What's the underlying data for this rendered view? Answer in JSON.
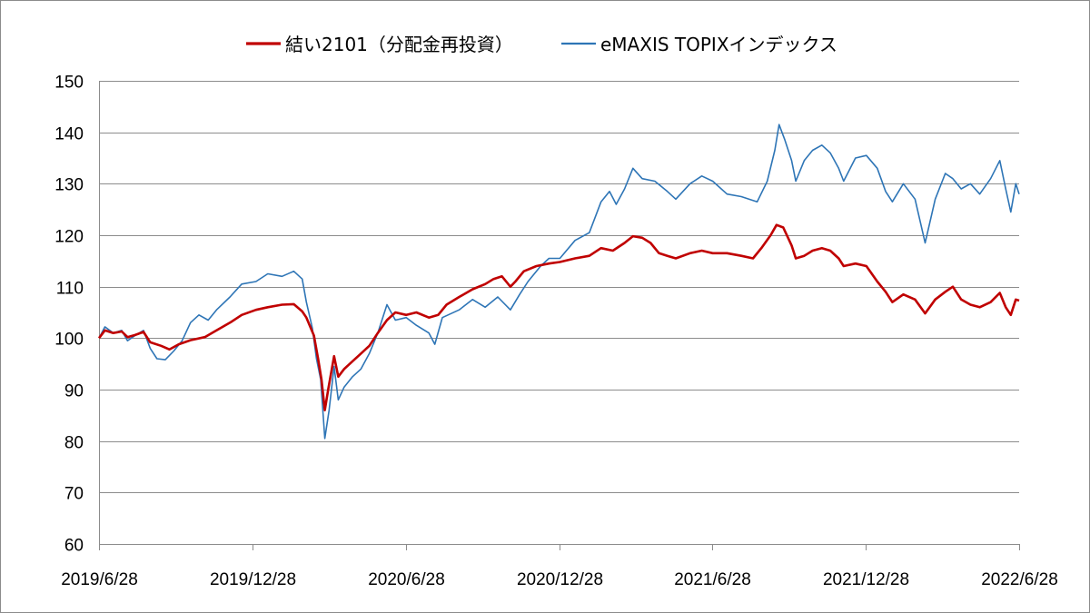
{
  "chart_data": {
    "type": "line",
    "title": "",
    "xlabel": "",
    "ylabel": "",
    "ylim": [
      60,
      150
    ],
    "y_ticks": [
      60,
      70,
      80,
      90,
      100,
      110,
      120,
      130,
      140,
      150
    ],
    "x_tick_labels": [
      "2019/6/28",
      "2019/12/28",
      "2020/6/28",
      "2020/12/28",
      "2021/6/28",
      "2021/12/28",
      "2022/6/28"
    ],
    "x_range": [
      "2019-06-28",
      "2022-06-28"
    ],
    "grid": "horizontal",
    "legend_position": "top",
    "series": [
      {
        "name": "結い2101（分配金再投資）",
        "color": "#c00000",
        "points": [
          [
            "2019-06-28",
            100.0
          ],
          [
            "2019-07-05",
            101.5
          ],
          [
            "2019-07-15",
            101.0
          ],
          [
            "2019-07-25",
            101.3
          ],
          [
            "2019-08-01",
            100.2
          ],
          [
            "2019-08-10",
            100.6
          ],
          [
            "2019-08-20",
            101.2
          ],
          [
            "2019-08-28",
            99.2
          ],
          [
            "2019-09-10",
            98.5
          ],
          [
            "2019-09-20",
            97.8
          ],
          [
            "2019-10-01",
            98.8
          ],
          [
            "2019-10-15",
            99.6
          ],
          [
            "2019-11-01",
            100.2
          ],
          [
            "2019-11-15",
            101.5
          ],
          [
            "2019-12-01",
            103.0
          ],
          [
            "2019-12-15",
            104.5
          ],
          [
            "2020-01-01",
            105.5
          ],
          [
            "2020-01-15",
            106.0
          ],
          [
            "2020-02-01",
            106.5
          ],
          [
            "2020-02-15",
            106.6
          ],
          [
            "2020-02-25",
            105.2
          ],
          [
            "2020-03-01",
            104.0
          ],
          [
            "2020-03-10",
            100.5
          ],
          [
            "2020-03-15",
            96.0
          ],
          [
            "2020-03-19",
            92.0
          ],
          [
            "2020-03-23",
            86.0
          ],
          [
            "2020-03-27",
            90.0
          ],
          [
            "2020-04-03",
            96.5
          ],
          [
            "2020-04-08",
            92.5
          ],
          [
            "2020-04-15",
            94.0
          ],
          [
            "2020-04-25",
            95.5
          ],
          [
            "2020-05-05",
            97.0
          ],
          [
            "2020-05-15",
            98.5
          ],
          [
            "2020-05-25",
            101.0
          ],
          [
            "2020-06-05",
            103.5
          ],
          [
            "2020-06-15",
            105.0
          ],
          [
            "2020-06-28",
            104.5
          ],
          [
            "2020-07-10",
            105.0
          ],
          [
            "2020-07-25",
            104.0
          ],
          [
            "2020-08-05",
            104.5
          ],
          [
            "2020-08-15",
            106.5
          ],
          [
            "2020-08-30",
            108.0
          ],
          [
            "2020-09-15",
            109.5
          ],
          [
            "2020-09-30",
            110.5
          ],
          [
            "2020-10-10",
            111.5
          ],
          [
            "2020-10-20",
            112.0
          ],
          [
            "2020-10-30",
            110.0
          ],
          [
            "2020-11-05",
            111.0
          ],
          [
            "2020-11-15",
            113.0
          ],
          [
            "2020-11-30",
            114.0
          ],
          [
            "2020-12-15",
            114.5
          ],
          [
            "2020-12-28",
            114.8
          ],
          [
            "2021-01-15",
            115.5
          ],
          [
            "2021-02-01",
            116.0
          ],
          [
            "2021-02-15",
            117.5
          ],
          [
            "2021-03-01",
            117.0
          ],
          [
            "2021-03-15",
            118.5
          ],
          [
            "2021-03-25",
            119.8
          ],
          [
            "2021-04-05",
            119.5
          ],
          [
            "2021-04-15",
            118.5
          ],
          [
            "2021-04-25",
            116.5
          ],
          [
            "2021-05-05",
            116.0
          ],
          [
            "2021-05-15",
            115.5
          ],
          [
            "2021-06-01",
            116.5
          ],
          [
            "2021-06-15",
            117.0
          ],
          [
            "2021-06-28",
            116.5
          ],
          [
            "2021-07-15",
            116.5
          ],
          [
            "2021-08-01",
            116.0
          ],
          [
            "2021-08-15",
            115.5
          ],
          [
            "2021-08-25",
            117.5
          ],
          [
            "2021-09-05",
            120.0
          ],
          [
            "2021-09-12",
            122.0
          ],
          [
            "2021-09-20",
            121.5
          ],
          [
            "2021-09-30",
            118.0
          ],
          [
            "2021-10-05",
            115.5
          ],
          [
            "2021-10-15",
            116.0
          ],
          [
            "2021-10-25",
            117.0
          ],
          [
            "2021-11-05",
            117.5
          ],
          [
            "2021-11-15",
            117.0
          ],
          [
            "2021-11-25",
            115.5
          ],
          [
            "2021-12-01",
            114.0
          ],
          [
            "2021-12-15",
            114.5
          ],
          [
            "2021-12-28",
            114.0
          ],
          [
            "2022-01-10",
            111.0
          ],
          [
            "2022-01-20",
            109.0
          ],
          [
            "2022-01-28",
            107.0
          ],
          [
            "2022-02-10",
            108.5
          ],
          [
            "2022-02-24",
            107.5
          ],
          [
            "2022-03-08",
            104.8
          ],
          [
            "2022-03-20",
            107.5
          ],
          [
            "2022-04-01",
            109.0
          ],
          [
            "2022-04-10",
            110.0
          ],
          [
            "2022-04-20",
            107.5
          ],
          [
            "2022-05-01",
            106.5
          ],
          [
            "2022-05-12",
            106.0
          ],
          [
            "2022-05-25",
            107.0
          ],
          [
            "2022-06-05",
            108.8
          ],
          [
            "2022-06-12",
            106.0
          ],
          [
            "2022-06-18",
            104.5
          ],
          [
            "2022-06-24",
            107.5
          ],
          [
            "2022-06-28",
            107.3
          ]
        ]
      },
      {
        "name": "eMAXIS TOPIXインデックス",
        "color": "#2e75b6",
        "points": [
          [
            "2019-06-28",
            100.0
          ],
          [
            "2019-07-05",
            102.2
          ],
          [
            "2019-07-15",
            101.0
          ],
          [
            "2019-07-25",
            101.5
          ],
          [
            "2019-08-01",
            99.5
          ],
          [
            "2019-08-10",
            100.5
          ],
          [
            "2019-08-20",
            101.5
          ],
          [
            "2019-08-28",
            98.0
          ],
          [
            "2019-09-05",
            96.0
          ],
          [
            "2019-09-15",
            95.8
          ],
          [
            "2019-09-25",
            97.5
          ],
          [
            "2019-10-05",
            99.5
          ],
          [
            "2019-10-15",
            103.0
          ],
          [
            "2019-10-25",
            104.5
          ],
          [
            "2019-11-05",
            103.5
          ],
          [
            "2019-11-15",
            105.5
          ],
          [
            "2019-12-01",
            108.0
          ],
          [
            "2019-12-15",
            110.5
          ],
          [
            "2020-01-01",
            111.0
          ],
          [
            "2020-01-15",
            112.5
          ],
          [
            "2020-02-01",
            112.0
          ],
          [
            "2020-02-15",
            113.0
          ],
          [
            "2020-02-25",
            111.5
          ],
          [
            "2020-03-01",
            107.0
          ],
          [
            "2020-03-08",
            102.0
          ],
          [
            "2020-03-13",
            96.0
          ],
          [
            "2020-03-18",
            92.0
          ],
          [
            "2020-03-23",
            80.5
          ],
          [
            "2020-03-28",
            86.0
          ],
          [
            "2020-04-03",
            94.5
          ],
          [
            "2020-04-08",
            88.0
          ],
          [
            "2020-04-15",
            90.5
          ],
          [
            "2020-04-25",
            92.5
          ],
          [
            "2020-05-05",
            94.0
          ],
          [
            "2020-05-15",
            97.0
          ],
          [
            "2020-05-25",
            101.0
          ],
          [
            "2020-06-05",
            106.5
          ],
          [
            "2020-06-15",
            103.5
          ],
          [
            "2020-06-28",
            104.0
          ],
          [
            "2020-07-10",
            102.5
          ],
          [
            "2020-07-25",
            101.0
          ],
          [
            "2020-08-01",
            98.8
          ],
          [
            "2020-08-10",
            104.0
          ],
          [
            "2020-08-30",
            105.5
          ],
          [
            "2020-09-15",
            107.5
          ],
          [
            "2020-09-30",
            106.0
          ],
          [
            "2020-10-15",
            108.0
          ],
          [
            "2020-10-30",
            105.5
          ],
          [
            "2020-11-10",
            108.5
          ],
          [
            "2020-11-20",
            111.0
          ],
          [
            "2020-12-05",
            114.0
          ],
          [
            "2020-12-15",
            115.5
          ],
          [
            "2020-12-28",
            115.5
          ],
          [
            "2021-01-15",
            119.0
          ],
          [
            "2021-02-01",
            120.5
          ],
          [
            "2021-02-15",
            126.5
          ],
          [
            "2021-02-25",
            128.5
          ],
          [
            "2021-03-05",
            126.0
          ],
          [
            "2021-03-15",
            129.0
          ],
          [
            "2021-03-25",
            133.0
          ],
          [
            "2021-04-05",
            131.0
          ],
          [
            "2021-04-20",
            130.5
          ],
          [
            "2021-05-05",
            128.5
          ],
          [
            "2021-05-15",
            127.0
          ],
          [
            "2021-06-01",
            130.0
          ],
          [
            "2021-06-15",
            131.5
          ],
          [
            "2021-06-28",
            130.5
          ],
          [
            "2021-07-15",
            128.0
          ],
          [
            "2021-08-01",
            127.5
          ],
          [
            "2021-08-20",
            126.5
          ],
          [
            "2021-09-01",
            130.5
          ],
          [
            "2021-09-10",
            136.5
          ],
          [
            "2021-09-15",
            141.5
          ],
          [
            "2021-09-22",
            138.5
          ],
          [
            "2021-09-30",
            134.5
          ],
          [
            "2021-10-05",
            130.5
          ],
          [
            "2021-10-15",
            134.5
          ],
          [
            "2021-10-25",
            136.5
          ],
          [
            "2021-11-05",
            137.5
          ],
          [
            "2021-11-15",
            136.0
          ],
          [
            "2021-11-25",
            133.0
          ],
          [
            "2021-12-01",
            130.5
          ],
          [
            "2021-12-15",
            135.0
          ],
          [
            "2021-12-28",
            135.5
          ],
          [
            "2022-01-10",
            133.0
          ],
          [
            "2022-01-20",
            128.5
          ],
          [
            "2022-01-28",
            126.5
          ],
          [
            "2022-02-10",
            130.0
          ],
          [
            "2022-02-24",
            127.0
          ],
          [
            "2022-03-08",
            118.5
          ],
          [
            "2022-03-20",
            127.0
          ],
          [
            "2022-04-01",
            132.0
          ],
          [
            "2022-04-10",
            131.0
          ],
          [
            "2022-04-20",
            129.0
          ],
          [
            "2022-05-01",
            130.0
          ],
          [
            "2022-05-12",
            128.0
          ],
          [
            "2022-05-25",
            131.0
          ],
          [
            "2022-06-05",
            134.5
          ],
          [
            "2022-06-12",
            129.0
          ],
          [
            "2022-06-18",
            124.5
          ],
          [
            "2022-06-24",
            130.0
          ],
          [
            "2022-06-28",
            128.0
          ]
        ]
      }
    ]
  }
}
